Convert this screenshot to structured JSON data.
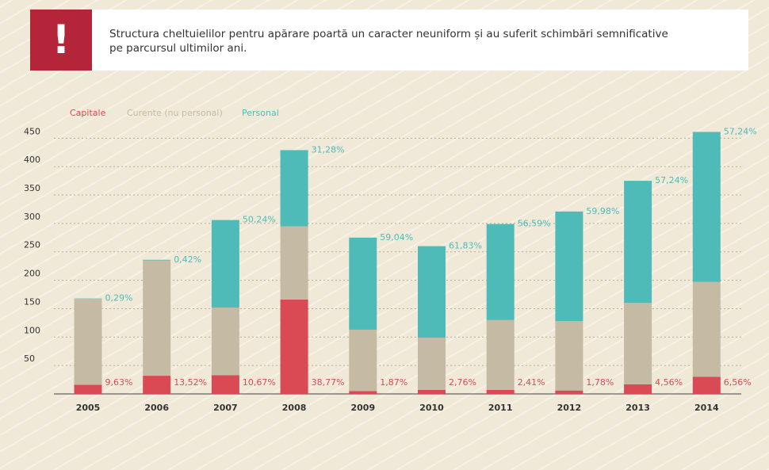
{
  "header": {
    "icon": "!",
    "text": "Structura cheltuielilor pentru apărare poartă un caracter neuniform și au suferit schimbări semnificative pe parcursul ultimilor ani."
  },
  "chart_data": {
    "type": "stacked-bar",
    "categories": [
      "2005",
      "2006",
      "2007",
      "2008",
      "2009",
      "2010",
      "2011",
      "2012",
      "2013",
      "2014"
    ],
    "series": [
      {
        "name": "Capitale",
        "color": "#d94a55",
        "values": [
          16,
          32,
          33,
          166,
          5,
          7,
          7,
          6,
          17,
          30
        ],
        "labels": [
          "9,63%",
          "13,52%",
          "10,67%",
          "38,77%",
          "1,87%",
          "2,76%",
          "2,41%",
          "1,78%",
          "4,56%",
          "6,56%"
        ]
      },
      {
        "name": "Curente (nu personal)",
        "color": "#c5baa3",
        "values": [
          151.5,
          203,
          119,
          129,
          108,
          92,
          123,
          122,
          143,
          167
        ]
      },
      {
        "name": "Personal",
        "color": "#4fbbb9",
        "values": [
          0.5,
          1,
          154,
          134,
          162,
          161,
          169,
          193,
          215,
          264
        ],
        "labels": [
          "0,29%",
          "0,42%",
          "50,24%",
          "31,28%",
          "59,04%",
          "61,83%",
          "56,59%",
          "59,98%",
          "57,24%",
          "57,24%"
        ]
      }
    ],
    "ylim": [
      0,
      470
    ],
    "yticks": [
      50,
      100,
      150,
      200,
      250,
      300,
      350,
      400,
      450
    ],
    "grid": true,
    "legend": "top-left"
  }
}
